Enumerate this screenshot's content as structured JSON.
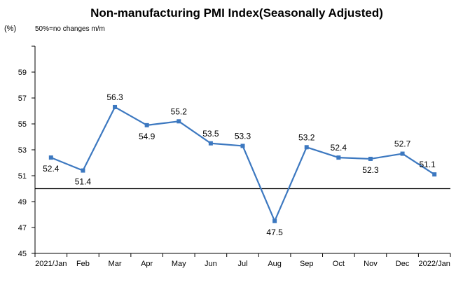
{
  "chart_data": {
    "type": "line",
    "title": "Non-manufacturing PMI Index(Seasonally Adjusted)",
    "ylabel": "(%)",
    "note": "50%=no changes  m/m",
    "categories": [
      "2021/Jan",
      "Feb",
      "Mar",
      "Apr",
      "May",
      "Jun",
      "Jul",
      "Aug",
      "Sep",
      "Oct",
      "Nov",
      "Dec",
      "2022/Jan"
    ],
    "values": [
      52.4,
      51.4,
      56.3,
      54.9,
      55.2,
      53.5,
      53.3,
      47.5,
      53.2,
      52.4,
      52.3,
      52.7,
      51.1
    ],
    "data_labels": [
      "52.4",
      "51.4",
      "56.3",
      "54.9",
      "55.2",
      "53.5",
      "53.3",
      "47.5",
      "53.2",
      "52.4",
      "52.3",
      "52.7",
      "51.1"
    ],
    "ylim": [
      45,
      61
    ],
    "yticks": [
      45,
      47,
      49,
      51,
      53,
      55,
      57,
      59
    ],
    "baseline": 50,
    "grid": false,
    "line_color": "#3C78C0",
    "axis_color": "#000000"
  }
}
